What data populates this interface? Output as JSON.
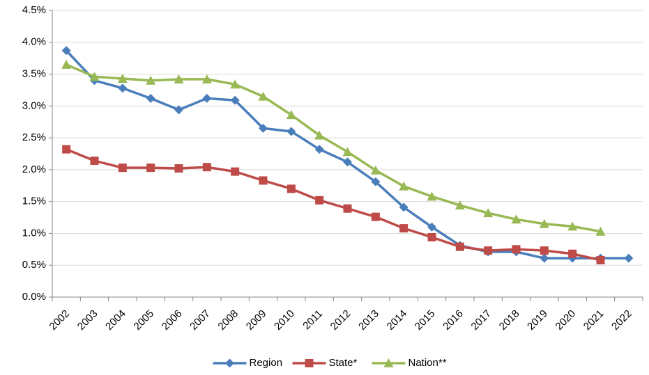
{
  "chart_data": {
    "type": "line",
    "categories": [
      "2002",
      "2003",
      "2004",
      "2005",
      "2006",
      "2007",
      "2008",
      "2009",
      "2010",
      "2011",
      "2012",
      "2013",
      "2014",
      "2015",
      "2016",
      "2017",
      "2018",
      "2019",
      "2020",
      "2021",
      "2022"
    ],
    "series": [
      {
        "name": "Region",
        "color": "#4a7ebb",
        "marker": "diamond",
        "values": [
          3.87,
          3.4,
          3.28,
          3.12,
          2.94,
          3.12,
          3.09,
          2.65,
          2.6,
          2.32,
          2.12,
          1.81,
          1.41,
          1.1,
          0.81,
          0.71,
          0.71,
          0.61,
          0.61,
          0.61,
          0.61
        ]
      },
      {
        "name": "State*",
        "color": "#be4b48",
        "marker": "square",
        "values": [
          2.32,
          2.14,
          2.03,
          2.03,
          2.02,
          2.04,
          1.97,
          1.83,
          1.7,
          1.52,
          1.39,
          1.26,
          1.08,
          0.94,
          0.79,
          0.73,
          0.75,
          0.73,
          0.68,
          0.58,
          null
        ]
      },
      {
        "name": "Nation**",
        "color": "#98b954",
        "marker": "triangle",
        "values": [
          3.65,
          3.46,
          3.43,
          3.4,
          3.42,
          3.42,
          3.34,
          3.15,
          2.86,
          2.54,
          2.28,
          1.99,
          1.74,
          1.58,
          1.44,
          1.32,
          1.22,
          1.15,
          1.11,
          1.03,
          null
        ]
      }
    ],
    "ylim": [
      0,
      4.5
    ],
    "yticks": [
      {
        "value": 0,
        "label": "0.0%"
      },
      {
        "value": 0.5,
        "label": "0.5%"
      },
      {
        "value": 1,
        "label": "1.0%"
      },
      {
        "value": 1.5,
        "label": "1.5%"
      },
      {
        "value": 2,
        "label": "2.0%"
      },
      {
        "value": 2.5,
        "label": "2.5%"
      },
      {
        "value": 3,
        "label": "3.0%"
      },
      {
        "value": 3.5,
        "label": "3.5%"
      },
      {
        "value": 4,
        "label": "4.0%"
      },
      {
        "value": 4.5,
        "label": "4.5%"
      }
    ],
    "grid": true,
    "legend": "bottom"
  }
}
